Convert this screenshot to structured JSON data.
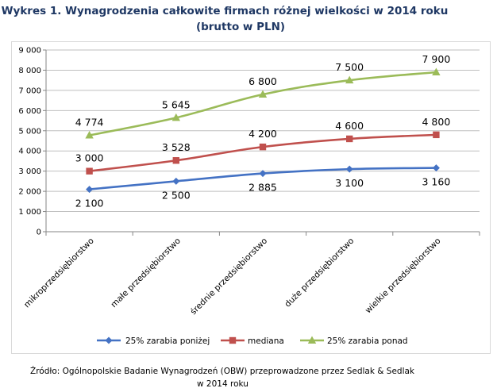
{
  "title_line1": "Wykres 1. Wynagrodzenia całkowite firmach różnej wielkości w 2014 roku",
  "title_line2": "(brutto w PLN)",
  "source_line1": "Źródło: Ogólnopolskie Badanie Wynagrodzeń (OBW) przeprowadzone przez Sedlak & Sedlak",
  "source_line2": "w 2014 roku",
  "chart_data": {
    "type": "line",
    "categories": [
      "mikroprzedsiębiorstwo",
      "małe przedsiębiorstwo",
      "średnie przedsiębiorstwo",
      "duże przedsiębiorstwo",
      "wielkie przedsiębiorstwo"
    ],
    "ylim": [
      0,
      9000
    ],
    "yticks": [
      0,
      1000,
      2000,
      3000,
      4000,
      5000,
      6000,
      7000,
      8000,
      9000
    ],
    "ytick_labels": [
      "0",
      "1 000",
      "2 000",
      "3 000",
      "4 000",
      "5 000",
      "6 000",
      "7 000",
      "8 000",
      "9 000"
    ],
    "grid": true,
    "legend_position": "bottom",
    "series": [
      {
        "name": "25% zarabia poniżej",
        "color": "#4472c4",
        "marker": "diamond",
        "values": [
          2100,
          2500,
          2885,
          3100,
          3160
        ],
        "labels": [
          "2 100",
          "2 500",
          "2 885",
          "3 100",
          "3 160"
        ]
      },
      {
        "name": "mediana",
        "color": "#c0504d",
        "marker": "square",
        "values": [
          3000,
          3528,
          4200,
          4600,
          4800
        ],
        "labels": [
          "3 000",
          "3 528",
          "4 200",
          "4 600",
          "4 800"
        ]
      },
      {
        "name": "25% zarabia ponad",
        "color": "#9bbb59",
        "marker": "triangle",
        "values": [
          4774,
          5645,
          6800,
          7500,
          7900
        ],
        "labels": [
          "4 774",
          "5 645",
          "6 800",
          "7 500",
          "7 900"
        ]
      }
    ]
  }
}
